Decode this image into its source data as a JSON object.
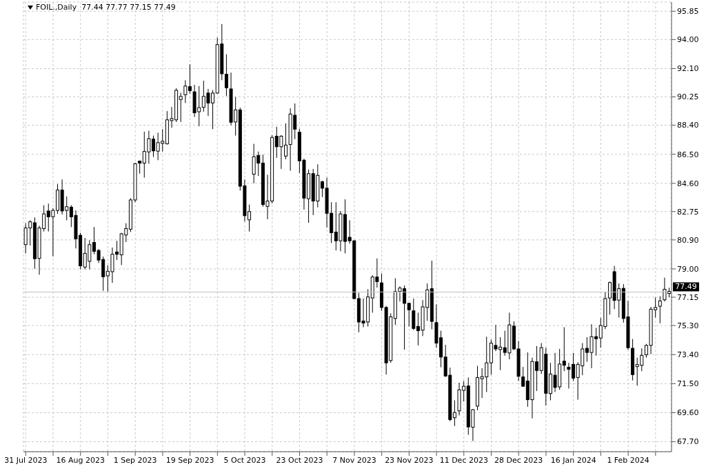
{
  "chart_data": {
    "type": "candlestick",
    "title": "FOIL.,Daily  77.44 77.77 77.15 77.49",
    "categories": [
      "31 Jul 2023",
      null,
      null,
      null,
      null,
      null,
      null,
      null,
      null,
      null,
      null,
      null,
      "16 Aug 2023",
      null,
      null,
      null,
      null,
      null,
      null,
      null,
      null,
      null,
      null,
      null,
      "1 Sep 2023",
      null,
      null,
      null,
      null,
      null,
      null,
      null,
      null,
      null,
      null,
      null,
      "19 Sep 2023",
      null,
      null,
      null,
      null,
      null,
      null,
      null,
      null,
      null,
      null,
      null,
      "5 Oct 2023",
      null,
      null,
      null,
      null,
      null,
      null,
      null,
      null,
      null,
      null,
      null,
      "23 Oct 2023",
      null,
      null,
      null,
      null,
      null,
      null,
      null,
      null,
      null,
      null,
      null,
      "7 Nov 2023",
      null,
      null,
      null,
      null,
      null,
      null,
      null,
      null,
      null,
      null,
      null,
      "23 Nov 2023",
      null,
      null,
      null,
      null,
      null,
      null,
      null,
      null,
      null,
      null,
      null,
      "11 Dec 2023",
      null,
      null,
      null,
      null,
      null,
      null,
      null,
      null,
      null,
      null,
      null,
      "28 Dec 2023",
      null,
      null,
      null,
      null,
      null,
      null,
      null,
      null,
      null,
      null,
      null,
      "16 Jan 2024",
      null,
      null,
      null,
      null,
      null,
      null,
      null,
      null,
      null,
      null,
      null,
      "1 Feb 2024",
      null,
      null,
      null,
      null,
      null,
      null,
      null,
      null,
      null
    ],
    "ohlc": [
      [
        80.59,
        81.99,
        80.02,
        81.68
      ],
      [
        81.68,
        82.18,
        80.53,
        82.08
      ],
      [
        82.02,
        82.37,
        79.01,
        79.67
      ],
      [
        79.69,
        81.83,
        78.62,
        81.68
      ],
      [
        81.64,
        83.17,
        81.45,
        82.6
      ],
      [
        82.79,
        83.27,
        81.45,
        82.41
      ],
      [
        82.41,
        82.98,
        79.83,
        82.83
      ],
      [
        82.83,
        84.55,
        82.6,
        84.16
      ],
      [
        84.16,
        84.85,
        82.56,
        82.79
      ],
      [
        82.83,
        83.74,
        82.18,
        83.07
      ],
      [
        83.04,
        83.17,
        81.74,
        82.41
      ],
      [
        82.5,
        82.83,
        80.34,
        80.97
      ],
      [
        81.2,
        81.36,
        78.97,
        79.2
      ],
      [
        79.12,
        81.03,
        78.97,
        80.02
      ],
      [
        79.5,
        80.88,
        78.97,
        80.59
      ],
      [
        80.73,
        81.74,
        79.96,
        80.15
      ],
      [
        80.21,
        80.3,
        79.39,
        79.58
      ],
      [
        79.62,
        79.81,
        77.57,
        78.49
      ],
      [
        78.55,
        79.24,
        77.52,
        78.85
      ],
      [
        78.82,
        80.4,
        78.09,
        79.96
      ],
      [
        80.11,
        80.84,
        79.58,
        79.96
      ],
      [
        79.92,
        81.36,
        79.25,
        81.3
      ],
      [
        81.22,
        81.99,
        80.76,
        81.64
      ],
      [
        81.6,
        83.63,
        81.41,
        83.51
      ],
      [
        83.51,
        85.94,
        83.36,
        85.88
      ],
      [
        86.03,
        86.07,
        85.23,
        85.94
      ],
      [
        85.92,
        87.98,
        84.97,
        86.68
      ],
      [
        86.65,
        88.04,
        85.88,
        87.52
      ],
      [
        87.49,
        87.72,
        86.32,
        86.72
      ],
      [
        86.7,
        87.91,
        86.11,
        87.26
      ],
      [
        87.26,
        88.14,
        86.68,
        87.3
      ],
      [
        87.18,
        89.32,
        87.14,
        88.75
      ],
      [
        88.71,
        89.59,
        88.23,
        88.82
      ],
      [
        88.75,
        90.81,
        88.61,
        90.68
      ],
      [
        90.08,
        90.52,
        88.61,
        90.28
      ],
      [
        90.39,
        91.34,
        89.85,
        90.96
      ],
      [
        90.92,
        92.38,
        90.47,
        90.66
      ],
      [
        90.58,
        91.04,
        88.94,
        89.21
      ],
      [
        89.28,
        90.96,
        88.33,
        89.55
      ],
      [
        89.57,
        91.31,
        89.28,
        90.28
      ],
      [
        90.5,
        90.77,
        89.0,
        89.85
      ],
      [
        89.85,
        90.7,
        88.14,
        90.5
      ],
      [
        90.5,
        94.13,
        90.47,
        93.67
      ],
      [
        93.71,
        95.01,
        91.34,
        91.76
      ],
      [
        91.73,
        93.04,
        90.31,
        90.85
      ],
      [
        90.77,
        91.84,
        88.4,
        88.59
      ],
      [
        88.61,
        90.24,
        87.72,
        89.4
      ],
      [
        89.4,
        89.55,
        84.12,
        84.41
      ],
      [
        84.43,
        84.85,
        82.1,
        82.48
      ],
      [
        82.21,
        83.21,
        81.45,
        82.75
      ],
      [
        85.19,
        87.18,
        84.6,
        86.34
      ],
      [
        86.42,
        86.68,
        85.08,
        85.92
      ],
      [
        85.92,
        86.47,
        83.07,
        83.21
      ],
      [
        83.09,
        85.16,
        82.25,
        83.44
      ],
      [
        83.44,
        87.75,
        83.28,
        87.6
      ],
      [
        87.68,
        88.29,
        86.26,
        86.99
      ],
      [
        86.99,
        87.75,
        85.54,
        87.68
      ],
      [
        86.38,
        88.52,
        86.17,
        87.1
      ],
      [
        87.14,
        89.51,
        85.42,
        89.13
      ],
      [
        89.05,
        89.82,
        87.49,
        88.14
      ],
      [
        87.94,
        88.17,
        85.27,
        86.07
      ],
      [
        86.11,
        86.21,
        82.88,
        83.63
      ],
      [
        83.59,
        85.5,
        82.02,
        85.23
      ],
      [
        85.23,
        85.54,
        82.52,
        83.44
      ],
      [
        83.44,
        85.84,
        83.02,
        85.12
      ],
      [
        84.7,
        84.77,
        83.7,
        84.28
      ],
      [
        84.28,
        84.97,
        81.72,
        82.64
      ],
      [
        82.64,
        83.36,
        80.69,
        81.37
      ],
      [
        81.41,
        83.36,
        80.21,
        80.84
      ],
      [
        80.84,
        82.79,
        80.15,
        82.6
      ],
      [
        82.56,
        83.55,
        80.02,
        80.8
      ],
      [
        81.07,
        82.18,
        80.65,
        80.84
      ],
      [
        80.84,
        80.88,
        77.02,
        77.06
      ],
      [
        77.06,
        77.44,
        74.86,
        75.53
      ],
      [
        75.57,
        77.06,
        75.19,
        75.49
      ],
      [
        75.53,
        77.67,
        75.24,
        77.17
      ],
      [
        77.1,
        78.59,
        76.14,
        78.47
      ],
      [
        78.47,
        79.69,
        77.78,
        78.17
      ],
      [
        78.09,
        78.7,
        76.26,
        76.48
      ],
      [
        76.48,
        76.58,
        72.09,
        72.86
      ],
      [
        73.01,
        76.1,
        72.86,
        75.87
      ],
      [
        75.76,
        78.39,
        75.34,
        77.52
      ],
      [
        77.52,
        77.86,
        76.87,
        77.75
      ],
      [
        77.71,
        77.92,
        73.72,
        76.75
      ],
      [
        76.75,
        76.8,
        75.24,
        76.33
      ],
      [
        76.26,
        77.06,
        75.0,
        75.11
      ],
      [
        75.24,
        76.14,
        74.0,
        74.96
      ],
      [
        75.0,
        76.96,
        74.61,
        76.52
      ],
      [
        76.48,
        78.05,
        75.61,
        77.63
      ],
      [
        77.71,
        79.54,
        75.05,
        75.57
      ],
      [
        75.49,
        76.68,
        73.85,
        74.15
      ],
      [
        74.5,
        74.96,
        72.57,
        73.24
      ],
      [
        73.24,
        74.04,
        71.94,
        72.0
      ],
      [
        72.05,
        72.55,
        69.04,
        69.15
      ],
      [
        69.27,
        70.41,
        68.73,
        69.61
      ],
      [
        69.72,
        71.56,
        69.42,
        71.1
      ],
      [
        71.06,
        71.67,
        70.33,
        71.33
      ],
      [
        71.35,
        71.9,
        68.16,
        68.67
      ],
      [
        68.65,
        69.84,
        67.75,
        69.8
      ],
      [
        70.03,
        72.66,
        69.76,
        71.9
      ],
      [
        71.84,
        72.51,
        70.56,
        71.94
      ],
      [
        71.94,
        74.57,
        70.95,
        72.86
      ],
      [
        72.86,
        74.38,
        72.09,
        74.15
      ],
      [
        74.0,
        75.34,
        73.62,
        73.77
      ],
      [
        73.73,
        74.54,
        72.38,
        73.89
      ],
      [
        73.85,
        74.96,
        73.33,
        73.54
      ],
      [
        73.51,
        76.14,
        73.09,
        75.34
      ],
      [
        75.26,
        75.57,
        73.7,
        73.77
      ],
      [
        73.77,
        74.29,
        71.67,
        71.98
      ],
      [
        71.94,
        72.59,
        71.29,
        71.33
      ],
      [
        71.67,
        73.54,
        69.99,
        70.45
      ],
      [
        70.45,
        73.2,
        69.23,
        72.95
      ],
      [
        72.93,
        73.96,
        71.02,
        72.36
      ],
      [
        72.36,
        74.15,
        72.13,
        73.85
      ],
      [
        73.43,
        73.85,
        70.07,
        70.87
      ],
      [
        70.85,
        72.86,
        70.41,
        72.13
      ],
      [
        72.05,
        73.51,
        70.95,
        71.25
      ],
      [
        71.29,
        73.77,
        71.1,
        72.78
      ],
      [
        72.97,
        75.19,
        72.32,
        72.7
      ],
      [
        72.57,
        72.86,
        71.18,
        72.44
      ],
      [
        72.76,
        73.51,
        71.67,
        71.86
      ],
      [
        71.9,
        72.9,
        70.45,
        72.76
      ],
      [
        72.66,
        74.15,
        72.05,
        73.77
      ],
      [
        73.81,
        74.54,
        72.93,
        73.54
      ],
      [
        73.54,
        75.38,
        72.51,
        74.57
      ],
      [
        74.57,
        75.15,
        73.33,
        74.44
      ],
      [
        74.48,
        75.8,
        73.85,
        75.3
      ],
      [
        75.24,
        77.48,
        75.07,
        77.06
      ],
      [
        77.1,
        78.17,
        76.01,
        78.11
      ],
      [
        78.82,
        79.2,
        76.37,
        76.94
      ],
      [
        76.96,
        78.05,
        75.82,
        77.71
      ],
      [
        77.73,
        78.01,
        75.49,
        75.76
      ],
      [
        75.87,
        76.91,
        73.72,
        73.85
      ],
      [
        73.81,
        74.42,
        71.71,
        72.09
      ],
      [
        72.66,
        73.2,
        71.37,
        72.7
      ],
      [
        72.7,
        73.81,
        72.32,
        73.35
      ],
      [
        73.39,
        74.1,
        73.2,
        74.0
      ],
      [
        74.0,
        76.52,
        73.43,
        76.37
      ],
      [
        76.33,
        77.13,
        75.82,
        76.48
      ],
      [
        76.56,
        77.21,
        75.45,
        76.91
      ],
      [
        76.98,
        78.43,
        76.87,
        77.67
      ],
      [
        77.44,
        77.77,
        77.15,
        77.49
      ]
    ],
    "ylim": [
      67.05,
      96.45
    ],
    "yticks": [
      95.85,
      {
        "value": 94,
        "label": "94.00"
      },
      {
        "value": 92.1,
        "label": "92.10"
      },
      90.25,
      {
        "value": 88.4,
        "label": "88.40"
      },
      {
        "value": 86.5,
        "label": "86.50"
      },
      {
        "value": 84.6,
        "label": "84.60"
      },
      82.75,
      {
        "value": 80.9,
        "label": "80.90"
      },
      {
        "value": 79,
        "label": "79.00"
      },
      77.15,
      {
        "value": 75.3,
        "label": "75.30"
      },
      {
        "value": 73.4,
        "label": "73.40"
      },
      {
        "value": 71.5,
        "label": "71.50"
      },
      {
        "value": 69.6,
        "label": "69.60"
      },
      {
        "value": 67.7,
        "label": "67.70"
      }
    ],
    "ref_lines": [
      {
        "axis": "y",
        "value": 77.49,
        "label": "77.49",
        "color": "#c0c0c0"
      }
    ],
    "grid": true
  }
}
